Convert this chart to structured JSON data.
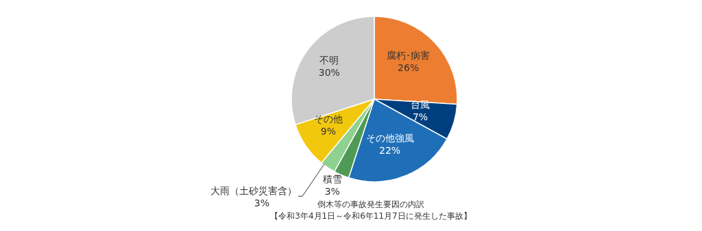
{
  "chart_data": {
    "type": "pie",
    "title": "倒木等の事故発生要因の内訳",
    "subtitle": "【令和3年4月1日～令和6年11月7日に発生した事故】",
    "categories": [
      "腐朽･病害",
      "台風",
      "その他強風",
      "積雪",
      "大雨（土砂災害含）",
      "その他",
      "不明"
    ],
    "values": [
      26,
      7,
      22,
      3,
      3,
      9,
      30
    ],
    "value_labels": [
      "26%",
      "7%",
      "22%",
      "3%",
      "3%",
      "9%",
      "30%"
    ],
    "colors": [
      "#ed7d31",
      "#003f7f",
      "#1f6fb8",
      "#4f9a55",
      "#8fd18f",
      "#f2c80f",
      "#cdcdcd"
    ]
  }
}
